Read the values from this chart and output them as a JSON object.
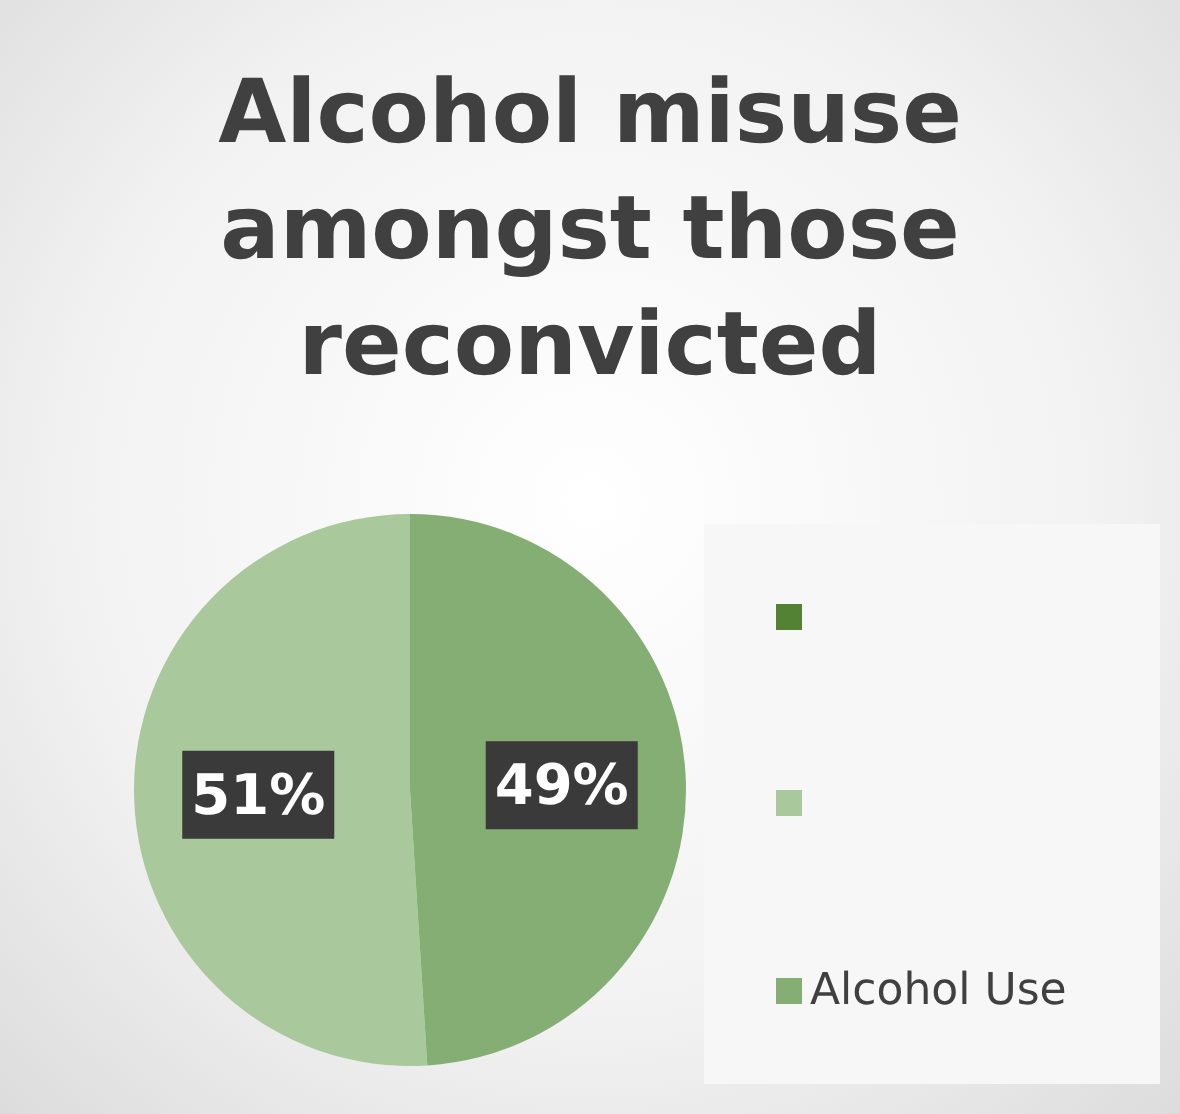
{
  "chart_data": {
    "type": "pie",
    "title": "Alcohol misuse amongst those reconvicted",
    "categories": [
      null,
      "Alcohol Use"
    ],
    "values": [
      51,
      49
    ],
    "colors": [
      "#a9c99c",
      "#84ae74"
    ],
    "value_labels": [
      "51%",
      "49%"
    ],
    "legend": "right"
  }
}
